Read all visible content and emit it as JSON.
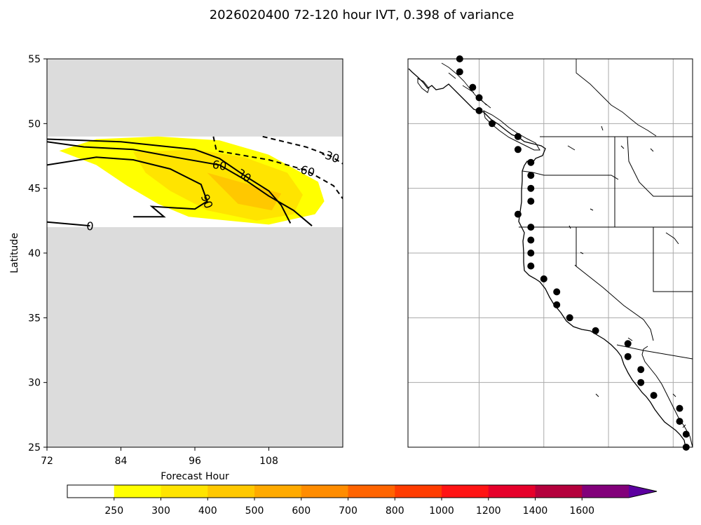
{
  "title": "2026020400 72-120 hour IVT, 0.398 of variance",
  "chart_data": [
    {
      "type": "contour",
      "xlabel": "Forecast Hour",
      "ylabel": "Latitude",
      "xlim": [
        72,
        120
      ],
      "ylim": [
        25,
        55
      ],
      "xticks": [
        72,
        84,
        96,
        108
      ],
      "yticks": [
        25,
        30,
        35,
        40,
        45,
        50,
        55
      ],
      "xtick_labels": [
        "72",
        "84",
        "96",
        "108"
      ],
      "ytick_labels": [
        "25",
        "30",
        "35",
        "40",
        "45",
        "50",
        "55"
      ],
      "masked_color": "#dcdcdc",
      "valid_lat_range": [
        42,
        49
      ],
      "filled_regions": [
        {
          "level": "250-300",
          "color": "#ffff00",
          "points": [
            [
              74,
              47.9
            ],
            [
              80,
              48.8
            ],
            [
              90,
              49
            ],
            [
              100,
              48.7
            ],
            [
              108,
              47.6
            ],
            [
              116,
              45.5
            ],
            [
              117,
              44
            ],
            [
              115.5,
              43
            ],
            [
              108,
              42.2
            ],
            [
              95,
              42.8
            ],
            [
              90,
              43.8
            ],
            [
              85,
              45.2
            ],
            [
              80,
              46.8
            ],
            [
              74,
              47.9
            ]
          ]
        },
        {
          "level": "300-400",
          "color": "#ffe400",
          "points": [
            [
              86,
              47.8
            ],
            [
              96,
              48
            ],
            [
              104,
              47.4
            ],
            [
              111,
              46.2
            ],
            [
              113.5,
              44.5
            ],
            [
              112,
              43
            ],
            [
              106,
              42.5
            ],
            [
              98,
              43.3
            ],
            [
              92,
              44.8
            ],
            [
              88,
              46.2
            ],
            [
              86,
              47.8
            ]
          ]
        },
        {
          "level": "400-500",
          "color": "#ffc800",
          "points": [
            [
              98,
              46.2
            ],
            [
              104,
              45.4
            ],
            [
              110,
              44.6
            ],
            [
              108.5,
              43.3
            ],
            [
              103,
              43.8
            ],
            [
              98,
              46.2
            ]
          ]
        }
      ],
      "contours": [
        {
          "level": 90,
          "style": "solid",
          "label": "90",
          "points": [
            [
              72,
              46.8
            ],
            [
              80,
              47.4
            ],
            [
              86,
              47.2
            ],
            [
              92,
              46.5
            ],
            [
              97,
              45.3
            ],
            [
              98,
              44
            ],
            [
              96,
              43.4
            ],
            [
              89,
              43.6
            ],
            [
              91,
              42.8
            ],
            [
              86,
              42.8
            ]
          ]
        },
        {
          "level": 60,
          "style": "solid",
          "label": "60",
          "points": [
            [
              72,
              48.6
            ],
            [
              78,
              48.2
            ],
            [
              86,
              48
            ],
            [
              94,
              47.3
            ],
            [
              100,
              46.8
            ],
            [
              104,
              45.7
            ],
            [
              108,
              44.4
            ],
            [
              112,
              43.3
            ],
            [
              115,
              42.1
            ]
          ]
        },
        {
          "level": 30,
          "style": "solid",
          "label": "30",
          "points": [
            [
              72,
              48.8
            ],
            [
              84,
              48.6
            ],
            [
              96,
              48
            ],
            [
              100,
              47.3
            ],
            [
              104,
              46
            ],
            [
              108,
              44.8
            ],
            [
              110,
              43.7
            ],
            [
              111.5,
              42.3
            ]
          ]
        },
        {
          "level": 0,
          "style": "solid",
          "label": "0",
          "points": [
            [
              72,
              42.4
            ],
            [
              79,
              42.1
            ]
          ]
        },
        {
          "level": -30,
          "style": "dashed",
          "label": "-30",
          "points": [
            [
              107,
              49
            ],
            [
              114,
              48.2
            ],
            [
              118,
              47.5
            ],
            [
              120,
              46.9
            ]
          ]
        },
        {
          "level": -60,
          "style": "dashed",
          "label": "-60",
          "points": [
            [
              99,
              49
            ],
            [
              99.5,
              47.9
            ],
            [
              108,
              47.2
            ],
            [
              114,
              46.4
            ],
            [
              118.5,
              45.2
            ],
            [
              120,
              44.2
            ]
          ]
        }
      ],
      "contour_labels": [
        "90",
        "60",
        "30",
        "0",
        "-30",
        "-60"
      ]
    },
    {
      "type": "map",
      "region": "West Coast of North America",
      "lon_range": [
        -135.5,
        -113.5
      ],
      "lat_range": [
        25,
        55
      ],
      "graticule_lons": [
        -130,
        -125,
        -120,
        -115
      ],
      "graticule_lats": [
        30,
        35,
        40,
        45,
        50
      ],
      "points": [
        [
          -131.5,
          55
        ],
        [
          -131.5,
          54
        ],
        [
          -130.5,
          52.8
        ],
        [
          -130,
          52
        ],
        [
          -130,
          51
        ],
        [
          -129,
          50
        ],
        [
          -127,
          49
        ],
        [
          -127,
          48
        ],
        [
          -126,
          47
        ],
        [
          -126,
          46
        ],
        [
          -126,
          45
        ],
        [
          -126,
          44
        ],
        [
          -127,
          43
        ],
        [
          -126,
          42
        ],
        [
          -126,
          41
        ],
        [
          -126,
          40
        ],
        [
          -126,
          39
        ],
        [
          -125,
          38
        ],
        [
          -124,
          37
        ],
        [
          -124,
          36
        ],
        [
          -123,
          35
        ],
        [
          -121,
          34
        ],
        [
          -118.5,
          33
        ],
        [
          -118.5,
          32
        ],
        [
          -117.5,
          31
        ],
        [
          -117.5,
          30
        ],
        [
          -116.5,
          29
        ],
        [
          -114.5,
          28
        ],
        [
          -114.5,
          27
        ],
        [
          -114,
          26
        ],
        [
          -114,
          25
        ]
      ]
    },
    {
      "type": "colorbar",
      "boundaries": [
        0,
        250,
        300,
        400,
        500,
        600,
        700,
        800,
        1000,
        1200,
        1400,
        1600
      ],
      "tick_labels": [
        "250",
        "300",
        "400",
        "500",
        "600",
        "700",
        "800",
        "1000",
        "1200",
        "1400",
        "1600"
      ],
      "colors": [
        "#ffffff",
        "#ffff00",
        "#ffe400",
        "#ffc800",
        "#ffaa00",
        "#ff8c00",
        "#ff6400",
        "#ff3c00",
        "#ff1414",
        "#e6002a",
        "#b4003c",
        "#82007a",
        "#5c00a0"
      ],
      "extend": "max"
    }
  ]
}
